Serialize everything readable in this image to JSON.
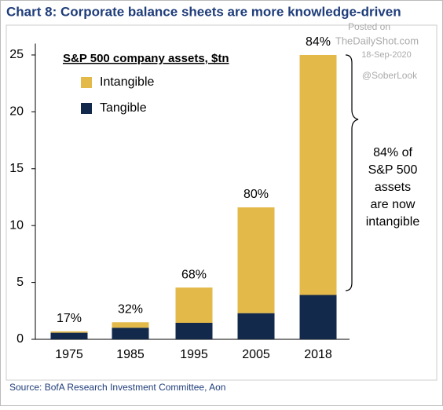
{
  "chart_data": {
    "type": "stacked_bar",
    "title": "Chart 8: Corporate balance sheets are more knowledge-driven",
    "legend_title": "S&P 500 company assets, $tn",
    "categories": [
      "1975",
      "1985",
      "1995",
      "2005",
      "2018"
    ],
    "series": [
      {
        "name": "Tangible",
        "color": "#13294b",
        "values": [
          0.58,
          1.02,
          1.45,
          2.3,
          3.9
        ]
      },
      {
        "name": "Intangible",
        "color": "#e3b94a",
        "values": [
          0.12,
          0.48,
          3.1,
          9.3,
          21.1
        ]
      }
    ],
    "bar_annotations": [
      "17%",
      "32%",
      "68%",
      "80%",
      "84%"
    ],
    "note": [
      "84% of",
      "S&P 500",
      "assets",
      "are now",
      "intangible"
    ],
    "watermark": [
      "Posted on",
      "TheDailyShot.com",
      "18-Sep-2020",
      "@SoberLook"
    ],
    "source": "Source: BofA Research Investment Committee, Aon",
    "ylim": [
      0,
      26
    ],
    "yticks": [
      0,
      5,
      10,
      15,
      20,
      25
    ]
  }
}
